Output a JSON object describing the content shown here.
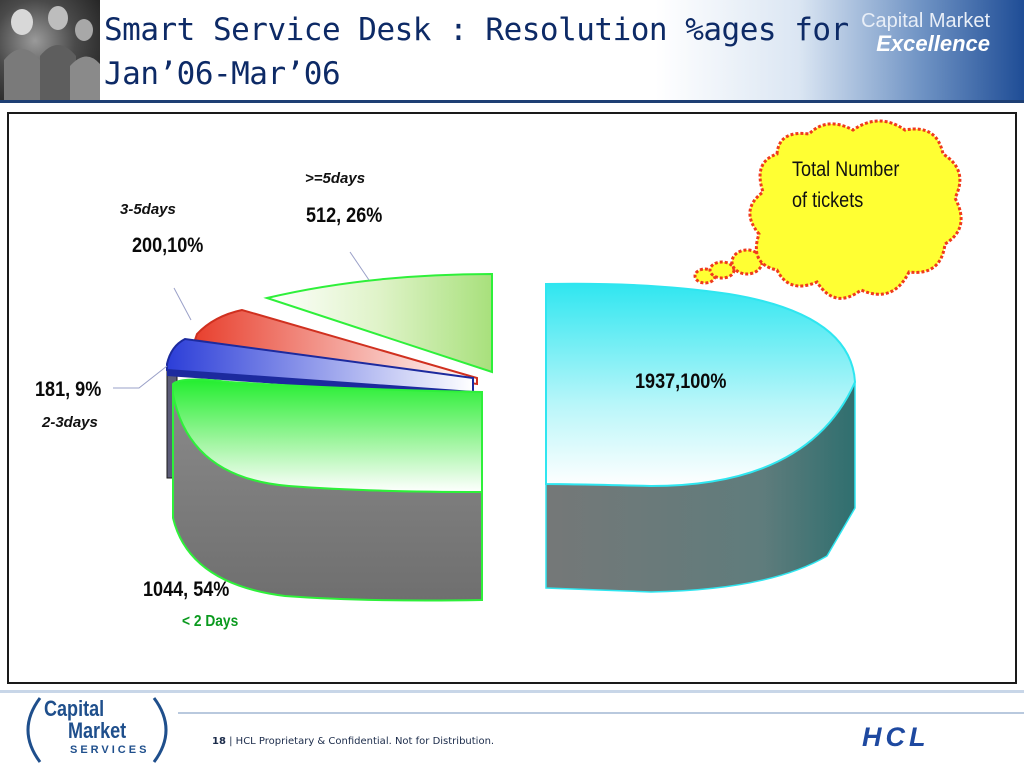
{
  "slide": {
    "title": "Smart Service Desk : Resolution %ages for Jan’06-Mar’06",
    "page_number": "18",
    "separator": "|",
    "footer_note": "HCL Proprietary & Confidential. Not for Distribution."
  },
  "branding": {
    "header_line1": "Capital Market",
    "header_line2": "Excellence",
    "footer_logo_line1": "Capital",
    "footer_logo_line2": "Market",
    "footer_logo_line3": "SERVICES",
    "company_logo": "HCL"
  },
  "chart_data": {
    "type": "pie",
    "subtype": "3d-exploded",
    "slices": [
      {
        "category": "< 2 Days",
        "value": 1044,
        "percent": 54,
        "label": "1044, 54%",
        "color": "#2ef03a"
      },
      {
        "category": "2-3days",
        "value": 181,
        "percent": 9,
        "label": "181, 9%",
        "color": "#2c3ed8"
      },
      {
        "category": "3-5days",
        "value": 200,
        "percent": 10,
        "label": "200,10%",
        "color": "#e8402e"
      },
      {
        "category": ">=5days",
        "value": 512,
        "percent": 26,
        "label": "512, 26%",
        "color": "#a8e07c"
      }
    ],
    "total": {
      "value": 1937,
      "percent": 100,
      "label": "1937,100%",
      "color": "#2fe6f0"
    },
    "callout": {
      "text_line1": "Total Number",
      "text_line2": "of tickets",
      "color": "#ffff33",
      "border_color": "#f03a1c"
    }
  }
}
